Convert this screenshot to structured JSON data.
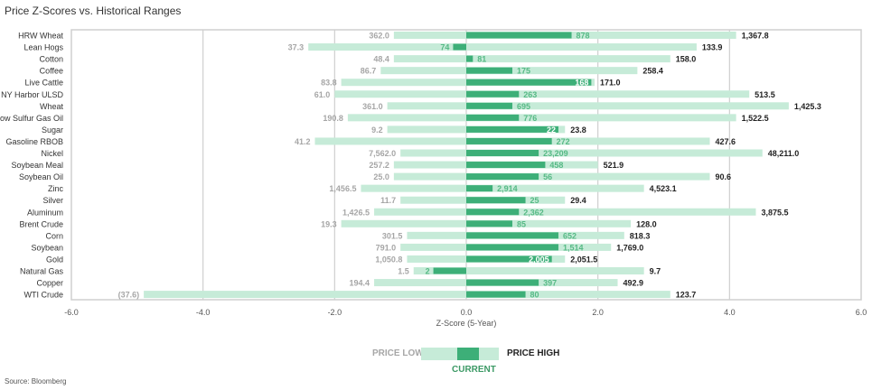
{
  "chart_data": {
    "type": "bar",
    "title": "Price Z-Scores vs. Historical Ranges",
    "xlabel": "Z-Score (5-Year)",
    "xlim": [
      -6,
      6
    ],
    "xticks": [
      "-6.0",
      "-4.0",
      "-2.0",
      "0.0",
      "2.0",
      "4.0",
      "6.0"
    ],
    "grid": true,
    "colors": {
      "range": "#c6ebd8",
      "current": "#3daf78",
      "low_label": "#a6a6a6",
      "current_label": "#56b985",
      "high_label": "#222222"
    },
    "categories": [
      "HRW Wheat",
      "Lean Hogs",
      "Cotton",
      "Coffee",
      "Live Cattle",
      "NY Harbor ULSD",
      "Wheat",
      "Low Sulfur Gas Oil",
      "Sugar",
      "Gasoline RBOB",
      "Nickel",
      "Soybean Meal",
      "Soybean Oil",
      "Zinc",
      "Silver",
      "Aluminum",
      "Brent Crude",
      "Corn",
      "Soybean",
      "Gold",
      "Natural Gas",
      "Copper",
      "WTI Crude"
    ],
    "series": [
      {
        "name": "PRICE LOW",
        "z": [
          -1.1,
          -2.4,
          -1.1,
          -1.3,
          -1.9,
          -2.0,
          -1.2,
          -1.8,
          -1.2,
          -2.3,
          -1.0,
          -1.1,
          -1.1,
          -1.6,
          -1.0,
          -1.4,
          -1.9,
          -0.9,
          -1.0,
          -0.9,
          -0.8,
          -1.4,
          -4.9
        ],
        "labels": [
          "362.0",
          "37.3",
          "48.4",
          "86.7",
          "83.8",
          "61.0",
          "361.0",
          "190.8",
          "9.2",
          "41.2",
          "7,562.0",
          "257.2",
          "25.0",
          "1,456.5",
          "11.7",
          "1,426.5",
          "19.3",
          "301.5",
          "791.0",
          "1,050.8",
          "1.5",
          "194.4",
          "(37.6)"
        ]
      },
      {
        "name": "CURRENT",
        "z": [
          1.6,
          -0.2,
          0.1,
          0.7,
          1.9,
          0.8,
          0.7,
          0.8,
          1.4,
          1.3,
          1.1,
          1.2,
          1.1,
          0.4,
          0.9,
          0.8,
          0.7,
          1.4,
          1.4,
          1.3,
          -0.5,
          1.1,
          0.9
        ],
        "labels": [
          "878",
          "74",
          "81",
          "175",
          "168",
          "263",
          "695",
          "776",
          "22",
          "272",
          "23,209",
          "458",
          "56",
          "2,914",
          "25",
          "2,362",
          "85",
          "652",
          "1,514",
          "2,005",
          "2",
          "397",
          "80"
        ]
      },
      {
        "name": "PRICE HIGH",
        "z": [
          4.1,
          3.5,
          3.1,
          2.6,
          1.95,
          4.3,
          4.9,
          4.1,
          1.5,
          3.7,
          4.5,
          2.0,
          3.7,
          2.7,
          1.5,
          4.4,
          2.5,
          2.4,
          2.2,
          1.5,
          2.7,
          2.3,
          3.1
        ],
        "labels": [
          "1,367.8",
          "133.9",
          "158.0",
          "258.4",
          "171.0",
          "513.5",
          "1,425.3",
          "1,522.5",
          "23.8",
          "427.6",
          "48,211.0",
          "521.9",
          "90.6",
          "4,523.1",
          "29.4",
          "3,875.5",
          "128.0",
          "818.3",
          "1,769.0",
          "2,051.5",
          "9.7",
          "492.9",
          "123.7"
        ]
      }
    ]
  },
  "legend": {
    "low": "PRICE LOW",
    "current": "CURRENT",
    "high": "PRICE HIGH"
  },
  "source": "Source: Bloomberg"
}
